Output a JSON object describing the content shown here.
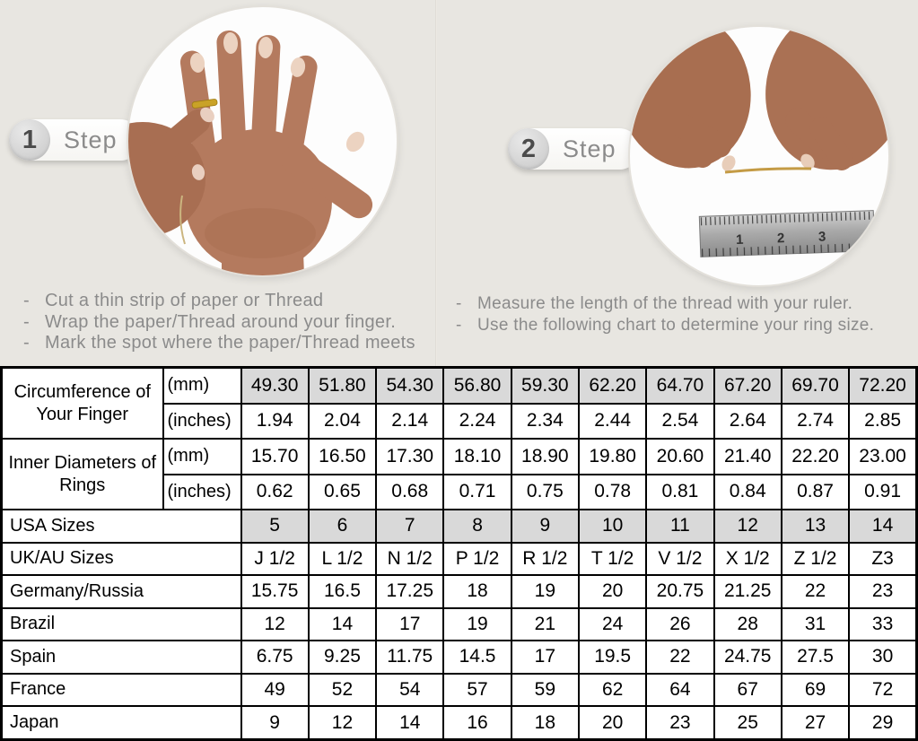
{
  "page": {
    "background": "#e8e6e1"
  },
  "steps": [
    {
      "number": "1",
      "label": "Step",
      "bullet": "-",
      "image": "hand-with-ring-photo",
      "instructions": [
        "Cut a thin strip of paper or Thread",
        "Wrap the paper/Thread around your finger.",
        "Mark the spot where the paper/Thread meets"
      ]
    },
    {
      "number": "2",
      "label": "Step",
      "bullet": "-",
      "image": "measuring-thread-with-ruler-photo",
      "instructions": [
        "Measure the length of the thread with your ruler.",
        "Use the following chart to determine your ring size."
      ]
    }
  ],
  "ruler_numbers": [
    "1",
    "2",
    "3"
  ],
  "colors": {
    "background": "#e8e6e1",
    "table_shaded": "#d9d9d9",
    "table_border": "#000000",
    "text_gray": "#8b8b8b",
    "gold_ring": "#c9a227"
  },
  "table": {
    "groups": [
      {
        "label": "Circumference of Your Finger",
        "rows": [
          {
            "unit": "(mm)",
            "shaded": true,
            "values": [
              "49.30",
              "51.80",
              "54.30",
              "56.80",
              "59.30",
              "62.20",
              "64.70",
              "67.20",
              "69.70",
              "72.20"
            ]
          },
          {
            "unit": "(inches)",
            "shaded": false,
            "values": [
              "1.94",
              "2.04",
              "2.14",
              "2.24",
              "2.34",
              "2.44",
              "2.54",
              "2.64",
              "2.74",
              "2.85"
            ]
          }
        ]
      },
      {
        "label": "Inner Diameters of Rings",
        "rows": [
          {
            "unit": "(mm)",
            "shaded": false,
            "values": [
              "15.70",
              "16.50",
              "17.30",
              "18.10",
              "18.90",
              "19.80",
              "20.60",
              "21.40",
              "22.20",
              "23.00"
            ]
          },
          {
            "unit": "(inches)",
            "shaded": false,
            "values": [
              "0.62",
              "0.65",
              "0.68",
              "0.71",
              "0.75",
              "0.78",
              "0.81",
              "0.84",
              "0.87",
              "0.91"
            ]
          }
        ]
      }
    ],
    "rows": [
      {
        "label": "USA Sizes",
        "shaded": true,
        "values": [
          "5",
          "6",
          "7",
          "8",
          "9",
          "10",
          "11",
          "12",
          "13",
          "14"
        ]
      },
      {
        "label": "UK/AU Sizes",
        "shaded": false,
        "values": [
          "J 1/2",
          "L 1/2",
          "N 1/2",
          "P 1/2",
          "R 1/2",
          "T 1/2",
          "V 1/2",
          "X 1/2",
          "Z 1/2",
          "Z3"
        ]
      },
      {
        "label": "Germany/Russia",
        "shaded": false,
        "values": [
          "15.75",
          "16.5",
          "17.25",
          "18",
          "19",
          "20",
          "20.75",
          "21.25",
          "22",
          "23"
        ]
      },
      {
        "label": "Brazil",
        "shaded": false,
        "values": [
          "12",
          "14",
          "17",
          "19",
          "21",
          "24",
          "26",
          "28",
          "31",
          "33"
        ]
      },
      {
        "label": "Spain",
        "shaded": false,
        "values": [
          "6.75",
          "9.25",
          "11.75",
          "14.5",
          "17",
          "19.5",
          "22",
          "24.75",
          "27.5",
          "30"
        ]
      },
      {
        "label": "France",
        "shaded": false,
        "values": [
          "49",
          "52",
          "54",
          "57",
          "59",
          "62",
          "64",
          "67",
          "69",
          "72"
        ]
      },
      {
        "label": "Japan",
        "shaded": false,
        "values": [
          "9",
          "12",
          "14",
          "16",
          "18",
          "20",
          "23",
          "25",
          "27",
          "29"
        ]
      }
    ]
  }
}
